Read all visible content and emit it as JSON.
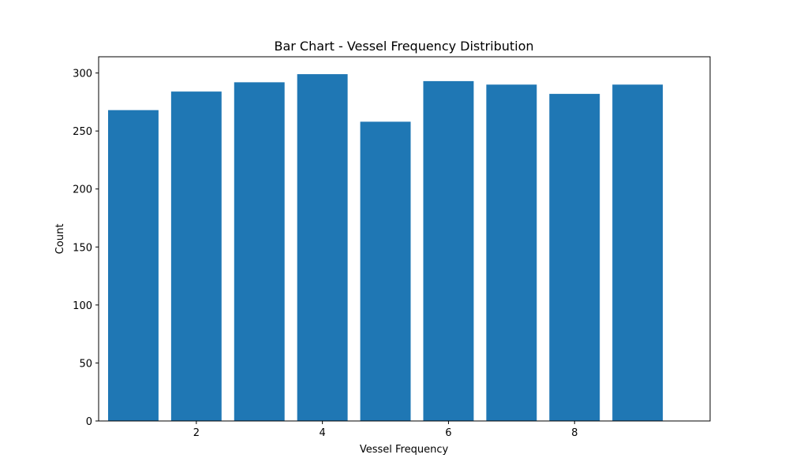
{
  "chart_data": {
    "type": "bar",
    "title": "Bar Chart - Vessel Frequency Distribution",
    "xlabel": "Vessel Frequency",
    "ylabel": "Count",
    "x": [
      1,
      2,
      3,
      4,
      5,
      6,
      7,
      8,
      9
    ],
    "values": [
      268,
      284,
      292,
      299,
      258,
      293,
      290,
      282,
      290
    ],
    "xlim": [
      0.45,
      10.15
    ],
    "ylim": [
      0,
      314
    ],
    "xticks": [
      2,
      4,
      6,
      8
    ],
    "yticks": [
      0,
      50,
      100,
      150,
      200,
      250,
      300
    ],
    "bar_width": 0.8,
    "bar_color": "#1f77b4",
    "grid": false,
    "legend": "none"
  }
}
